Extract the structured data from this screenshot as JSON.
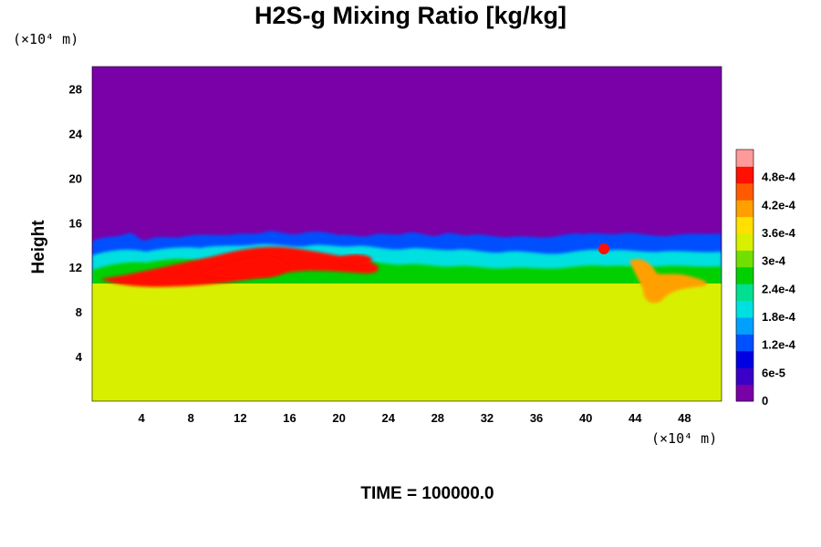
{
  "chart_data": {
    "type": "heatmap",
    "title": "H2S-g Mixing Ratio [kg/kg]",
    "ylabel": "Height",
    "x_unit_label": "(×10⁴ m)",
    "y_unit_label": "(×10⁴ m)",
    "x_range": [
      0,
      51
    ],
    "y_range": [
      0,
      30
    ],
    "x_ticks": [
      "4",
      "8",
      "12",
      "16",
      "20",
      "24",
      "28",
      "32",
      "36",
      "40",
      "44",
      "48"
    ],
    "y_ticks": [
      "4",
      "8",
      "12",
      "16",
      "20",
      "24",
      "28"
    ],
    "colorbar": {
      "range": [
        0,
        0.00054
      ],
      "tick_labels": [
        "0",
        "6e-5",
        "1.2e-4",
        "1.8e-4",
        "2.4e-4",
        "3e-4",
        "3.6e-4",
        "4.2e-4",
        "4.8e-4"
      ],
      "tick_values": [
        0,
        6e-05,
        0.00012,
        0.00018,
        0.00024,
        0.0003,
        0.00036,
        0.00042,
        0.00048
      ],
      "colors": [
        "#7a00a8",
        "#3a00c8",
        "#0000e0",
        "#0050ff",
        "#00a0ff",
        "#00e0e0",
        "#00e090",
        "#00d000",
        "#70e000",
        "#d8f000",
        "#ffe000",
        "#ffa000",
        "#ff5a00",
        "#ff1000",
        "#ff9a9a"
      ]
    },
    "field_summary": {
      "upper_layer_value": 0,
      "lower_layer_value": 0.00034,
      "interface_height": 13.5,
      "peak_value": 0.0005
    },
    "time_label": "TIME = 100000.0"
  }
}
